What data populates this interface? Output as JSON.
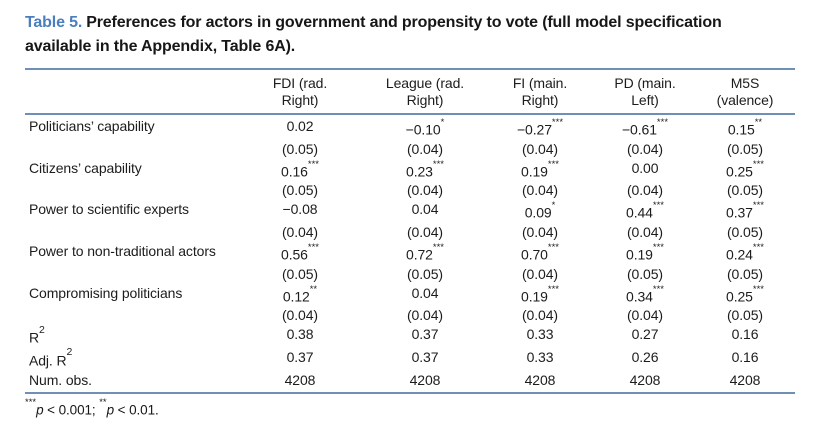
{
  "title": {
    "label": "Table 5.",
    "caption": "Preferences for actors in government and propensity to vote (full model specification available in the Appendix, Table 6A)."
  },
  "accent_colors": {
    "table_number_blue": "#4a7ebc",
    "rule_blue": "#6f8fb4"
  },
  "table": {
    "columns": [
      "FDI (rad.\nRight)",
      "League (rad.\nRight)",
      "FI (main.\nRight)",
      "PD (main.\nLeft)",
      "M5S\n(valence)"
    ],
    "rows": [
      {
        "label": "Politicians’ capability",
        "values": [
          "0.02",
          "−0.10*",
          "−0.27***",
          "−0.61***",
          "0.15**"
        ]
      },
      {
        "label": "",
        "values": [
          "(0.05)",
          "(0.04)",
          "(0.04)",
          "(0.04)",
          "(0.05)"
        ]
      },
      {
        "label": "Citizens’ capability",
        "values": [
          "0.16***",
          "0.23***",
          "0.19***",
          "0.00",
          "0.25***"
        ]
      },
      {
        "label": "",
        "values": [
          "(0.05)",
          "(0.04)",
          "(0.04)",
          "(0.04)",
          "(0.05)"
        ]
      },
      {
        "label": "Power to scientific experts",
        "values": [
          "−0.08",
          "0.04",
          "0.09*",
          "0.44***",
          "0.37***"
        ]
      },
      {
        "label": "",
        "values": [
          "(0.04)",
          "(0.04)",
          "(0.04)",
          "(0.04)",
          "(0.05)"
        ]
      },
      {
        "label": "Power to non-traditional actors",
        "values": [
          "0.56***",
          "0.72***",
          "0.70***",
          "0.19***",
          "0.24***"
        ]
      },
      {
        "label": "",
        "values": [
          "(0.05)",
          "(0.05)",
          "(0.04)",
          "(0.05)",
          "(0.05)"
        ]
      },
      {
        "label": "Compromising politicians",
        "values": [
          "0.12**",
          "0.04",
          "0.19***",
          "0.34***",
          "0.25***"
        ]
      },
      {
        "label": "",
        "values": [
          "(0.04)",
          "(0.04)",
          "(0.04)",
          "(0.04)",
          "(0.05)"
        ]
      },
      {
        "label": "R²",
        "values": [
          "0.38",
          "0.37",
          "0.33",
          "0.27",
          "0.16"
        ]
      },
      {
        "label": "Adj. R²",
        "values": [
          "0.37",
          "0.37",
          "0.33",
          "0.26",
          "0.16"
        ]
      },
      {
        "label": "Num. obs.",
        "values": [
          "4208",
          "4208",
          "4208",
          "4208",
          "4208"
        ]
      }
    ]
  },
  "footnote": {
    "parts": [
      {
        "t": "***",
        "sup": true
      },
      {
        "t": "p",
        "italic": true
      },
      {
        "t": " < 0.001; "
      },
      {
        "t": "**",
        "sup": true
      },
      {
        "t": "p",
        "italic": true
      },
      {
        "t": " < 0.01."
      }
    ]
  }
}
